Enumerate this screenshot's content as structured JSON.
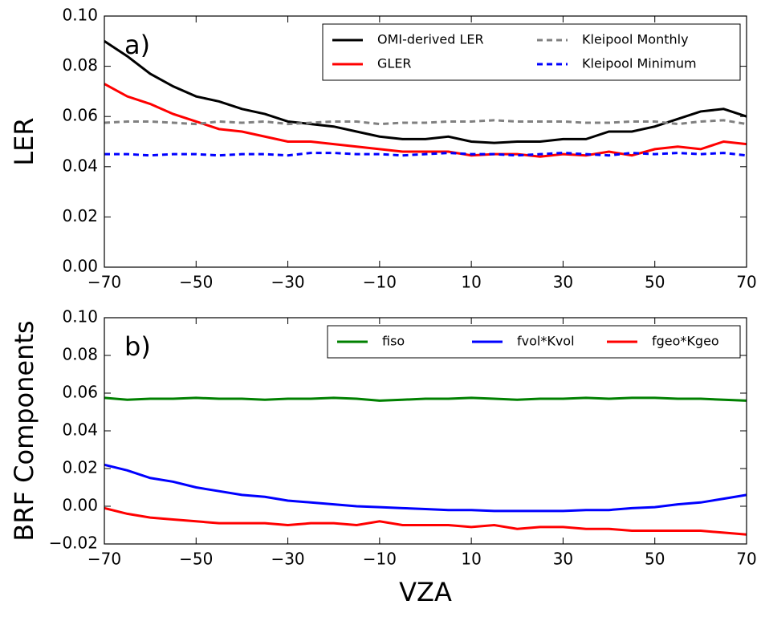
{
  "chart_data": [
    {
      "type": "line",
      "annotation": "a)",
      "ylabel": "LER",
      "x": [
        -70,
        -65,
        -60,
        -55,
        -50,
        -45,
        -40,
        -35,
        -30,
        -25,
        -20,
        -15,
        -10,
        -5,
        0,
        5,
        10,
        15,
        20,
        25,
        30,
        35,
        40,
        45,
        50,
        55,
        60,
        65,
        70
      ],
      "series": [
        {
          "name": "OMI-derived LER",
          "color": "#000000",
          "linestyle": "solid",
          "values": [
            0.09,
            0.084,
            0.077,
            0.072,
            0.068,
            0.066,
            0.063,
            0.061,
            0.058,
            0.057,
            0.056,
            0.054,
            0.052,
            0.051,
            0.051,
            0.052,
            0.05,
            0.0495,
            0.05,
            0.05,
            0.051,
            0.051,
            0.054,
            0.054,
            0.056,
            0.059,
            0.062,
            0.063,
            0.06
          ]
        },
        {
          "name": "GLER",
          "color": "#ff0000",
          "linestyle": "solid",
          "values": [
            0.073,
            0.068,
            0.065,
            0.061,
            0.058,
            0.055,
            0.054,
            0.052,
            0.05,
            0.05,
            0.049,
            0.048,
            0.047,
            0.046,
            0.046,
            0.046,
            0.0445,
            0.045,
            0.045,
            0.044,
            0.045,
            0.0445,
            0.046,
            0.0445,
            0.047,
            0.048,
            0.047,
            0.05,
            0.049
          ]
        },
        {
          "name": "Kleipool Monthly",
          "color": "#808080",
          "linestyle": "dashed",
          "values": [
            0.0575,
            0.058,
            0.058,
            0.0575,
            0.057,
            0.058,
            0.0575,
            0.058,
            0.057,
            0.0575,
            0.058,
            0.058,
            0.057,
            0.0575,
            0.0575,
            0.058,
            0.058,
            0.0585,
            0.058,
            0.058,
            0.058,
            0.0575,
            0.0575,
            0.058,
            0.058,
            0.057,
            0.058,
            0.0585,
            0.057
          ]
        },
        {
          "name": "Kleipool Minimum",
          "color": "#0000ff",
          "linestyle": "dashed",
          "values": [
            0.045,
            0.045,
            0.0445,
            0.045,
            0.045,
            0.0445,
            0.045,
            0.045,
            0.0445,
            0.0455,
            0.0455,
            0.045,
            0.045,
            0.0445,
            0.045,
            0.0455,
            0.045,
            0.045,
            0.0445,
            0.045,
            0.0455,
            0.045,
            0.0445,
            0.0455,
            0.045,
            0.0455,
            0.045,
            0.0455,
            0.0445
          ]
        }
      ],
      "xlim": [
        -70,
        70
      ],
      "xticks": [
        {
          "value": -70,
          "label": "−70"
        },
        {
          "value": -50,
          "label": "−50"
        },
        {
          "value": -30,
          "label": "−30"
        },
        {
          "value": -10,
          "label": "−10"
        },
        10,
        30,
        50,
        70
      ],
      "ylim": [
        0,
        0.1
      ],
      "yticks": [
        {
          "value": 0,
          "label": "0.00"
        },
        0.02,
        0.04,
        0.06,
        0.08,
        {
          "value": 0.1,
          "label": "0.10"
        }
      ],
      "legend": "upper right",
      "legend_columns": 2
    },
    {
      "type": "line",
      "annotation": "b)",
      "ylabel": "BRF Components",
      "xlabel": "VZA",
      "x": [
        -70,
        -65,
        -60,
        -55,
        -50,
        -45,
        -40,
        -35,
        -30,
        -25,
        -20,
        -15,
        -10,
        -5,
        0,
        5,
        10,
        15,
        20,
        25,
        30,
        35,
        40,
        45,
        50,
        55,
        60,
        65,
        70
      ],
      "series": [
        {
          "name": "fiso",
          "color": "#008000",
          "linestyle": "solid",
          "values": [
            0.0575,
            0.0565,
            0.057,
            0.057,
            0.0575,
            0.057,
            0.057,
            0.0565,
            0.057,
            0.057,
            0.0575,
            0.057,
            0.056,
            0.0565,
            0.057,
            0.057,
            0.0575,
            0.057,
            0.0565,
            0.057,
            0.057,
            0.0575,
            0.057,
            0.0575,
            0.0575,
            0.057,
            0.057,
            0.0565,
            0.056
          ]
        },
        {
          "name": "fvol*Kvol",
          "color": "#0000ff",
          "linestyle": "solid",
          "values": [
            0.022,
            0.019,
            0.015,
            0.013,
            0.01,
            0.008,
            0.006,
            0.005,
            0.003,
            0.002,
            0.001,
            0.0,
            -0.0005,
            -0.001,
            -0.0015,
            -0.002,
            -0.002,
            -0.0025,
            -0.0025,
            -0.0025,
            -0.0025,
            -0.002,
            -0.002,
            -0.001,
            -0.0005,
            0.001,
            0.002,
            0.004,
            0.006
          ]
        },
        {
          "name": "fgeo*Kgeo",
          "color": "#ff0000",
          "linestyle": "solid",
          "values": [
            -0.001,
            -0.004,
            -0.006,
            -0.007,
            -0.008,
            -0.009,
            -0.009,
            -0.009,
            -0.01,
            -0.009,
            -0.009,
            -0.01,
            -0.008,
            -0.01,
            -0.01,
            -0.01,
            -0.011,
            -0.01,
            -0.012,
            -0.011,
            -0.011,
            -0.012,
            -0.012,
            -0.013,
            -0.013,
            -0.013,
            -0.013,
            -0.014,
            -0.015
          ]
        }
      ],
      "xlim": [
        -70,
        70
      ],
      "xticks": [
        {
          "value": -70,
          "label": "−70"
        },
        {
          "value": -50,
          "label": "−50"
        },
        {
          "value": -30,
          "label": "−30"
        },
        {
          "value": -10,
          "label": "−10"
        },
        10,
        30,
        50,
        70
      ],
      "ylim": [
        -0.02,
        0.1
      ],
      "yticks": [
        {
          "value": -0.02,
          "label": "−0.02"
        },
        {
          "value": 0,
          "label": "0.00"
        },
        0.02,
        0.04,
        0.06,
        0.08,
        {
          "value": 0.1,
          "label": "0.10"
        }
      ],
      "legend": "upper right",
      "legend_columns": 3
    }
  ]
}
